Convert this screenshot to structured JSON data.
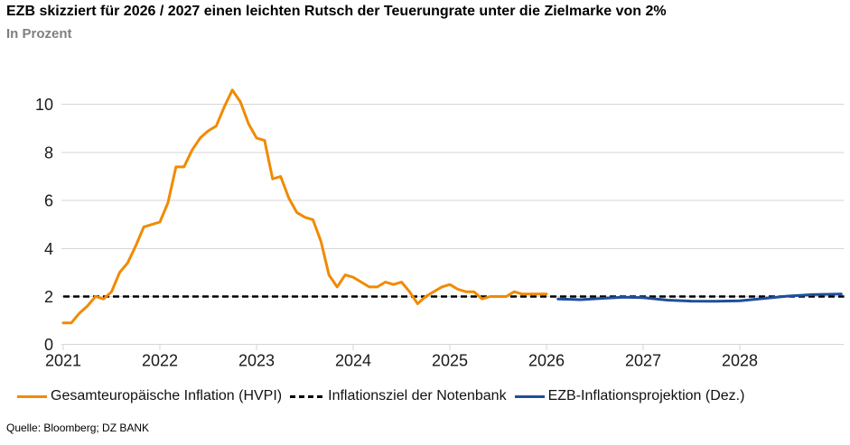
{
  "header": {
    "title": "EZB skizziert für 2026 / 2027 einen leichten Rutsch der Teuerungrate unter die Zielmarke von 2%",
    "subtitle": "In Prozent"
  },
  "source": "Quelle: Bloomberg; DZ BANK",
  "chart_data": {
    "type": "line",
    "title": "EZB skizziert für 2026 / 2027 einen leichten Rutsch der Teuerungrate unter die Zielmarke von 2%",
    "ylabel": "In Prozent",
    "xlabel": "",
    "ylim": [
      0,
      11
    ],
    "y_ticks": [
      0,
      2,
      4,
      6,
      8,
      10
    ],
    "x_ticks": [
      2021,
      2022,
      2023,
      2024,
      2025,
      2026,
      2027,
      2028
    ],
    "x_range": [
      2021,
      2029.08
    ],
    "grid": true,
    "grid_color": "#d6d6d6",
    "legend_position": "bottom",
    "series": [
      {
        "name": "Gesamteuropäische Inflation (HVPI)",
        "color": "#f18a00",
        "style": "solid",
        "stroke_width": 3,
        "z": 2,
        "freq": "monthly",
        "x_start": 2021.0,
        "x_step": 0.0833333,
        "first_month": "2021-01",
        "last_month": "2026-01",
        "values": [
          0.9,
          0.9,
          1.3,
          1.6,
          2.0,
          1.9,
          2.2,
          3.0,
          3.4,
          4.1,
          4.9,
          5.0,
          5.1,
          5.9,
          7.4,
          7.4,
          8.1,
          8.6,
          8.9,
          9.1,
          9.9,
          10.6,
          10.1,
          9.2,
          8.6,
          8.5,
          6.9,
          7.0,
          6.1,
          5.5,
          5.3,
          5.2,
          4.3,
          2.9,
          2.4,
          2.9,
          2.8,
          2.6,
          2.4,
          2.4,
          2.6,
          2.5,
          2.6,
          2.2,
          1.7,
          2.0,
          2.2,
          2.4,
          2.5,
          2.3,
          2.2,
          2.2,
          1.9,
          2.0,
          2.0,
          2.0,
          2.2,
          2.1,
          2.1,
          2.1,
          2.1
        ]
      },
      {
        "name": "Inflationsziel der Notenbank",
        "color": "#000000",
        "style": "dashed",
        "dash": "7,4",
        "stroke_width": 2.4,
        "z": 1,
        "target_value": 2.0,
        "points": [
          [
            2021.0,
            2.0
          ],
          [
            2029.08,
            2.0
          ]
        ]
      },
      {
        "name": "EZB-Inflationsprojektion (Dez.)",
        "color": "#1f4e9c",
        "style": "solid",
        "stroke_width": 3,
        "z": 3,
        "points": [
          [
            2026.12,
            1.9
          ],
          [
            2026.35,
            1.87
          ],
          [
            2026.6,
            1.93
          ],
          [
            2026.8,
            1.97
          ],
          [
            2027.0,
            1.95
          ],
          [
            2027.25,
            1.85
          ],
          [
            2027.5,
            1.81
          ],
          [
            2027.75,
            1.8
          ],
          [
            2028.0,
            1.82
          ],
          [
            2028.25,
            1.92
          ],
          [
            2028.5,
            2.02
          ],
          [
            2028.75,
            2.08
          ],
          [
            2029.05,
            2.1
          ]
        ]
      }
    ]
  }
}
